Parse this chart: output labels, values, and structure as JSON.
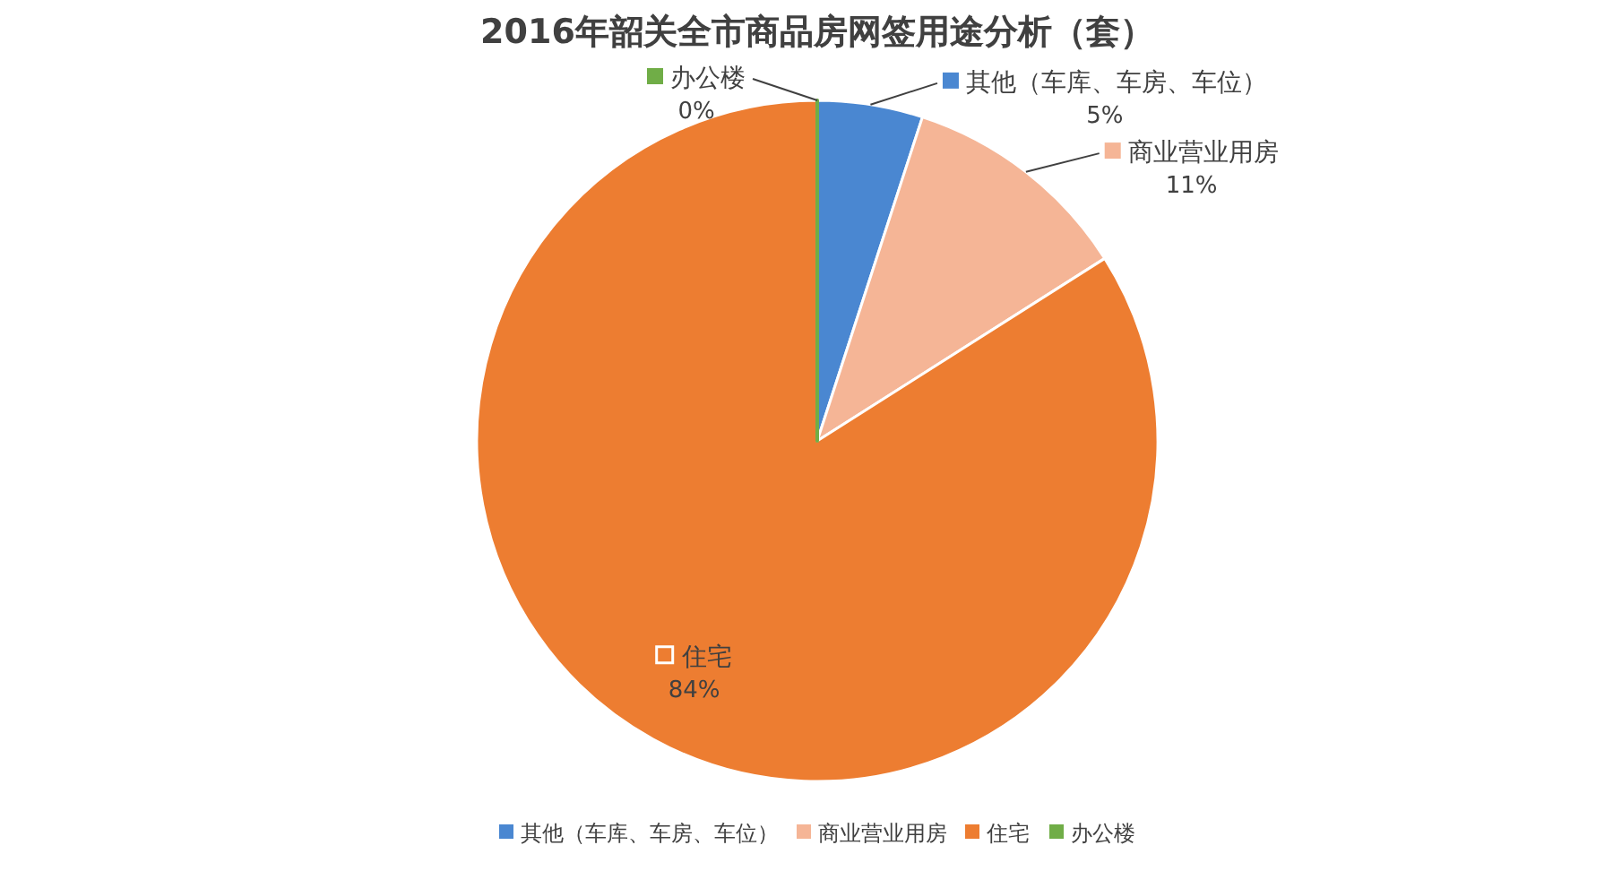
{
  "chart_data": {
    "type": "pie",
    "title": "2016年韶关全市商品房网签用途分析（套）",
    "categories": [
      "其他（车库、车房、车位）",
      "商业营业用房",
      "住宅",
      "办公楼"
    ],
    "values": [
      5,
      11,
      84,
      0
    ],
    "colors": [
      "#4a87d1",
      "#f5b596",
      "#ed7d31",
      "#70ad47"
    ],
    "value_labels": [
      "5%",
      "11%",
      "84%",
      "0%"
    ],
    "legend": "bottom"
  }
}
